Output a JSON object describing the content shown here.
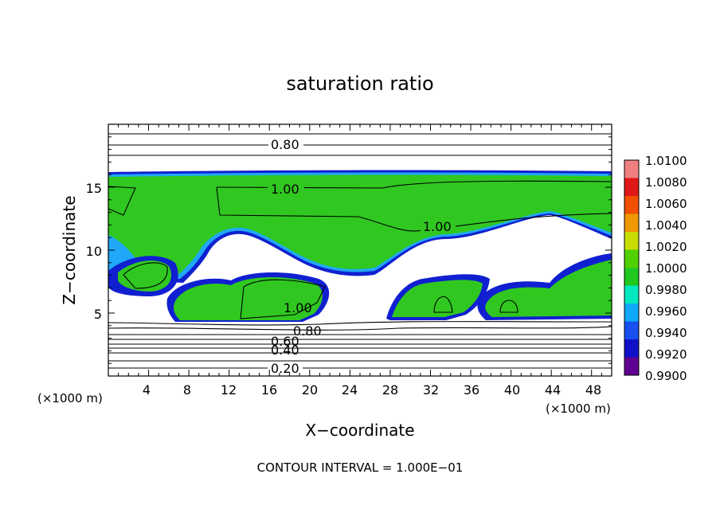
{
  "chart_data": {
    "type": "contour",
    "title": "saturation ratio",
    "xlabel": "X−coordinate",
    "ylabel": "Z−coordinate",
    "x_unit": "(×1000 m)",
    "z_unit": "(×1000 m)",
    "xlim": [
      0,
      50
    ],
    "ylim": [
      0,
      20
    ],
    "x_ticks": [
      "4",
      "8",
      "12",
      "16",
      "20",
      "24",
      "28",
      "32",
      "36",
      "40",
      "44",
      "48"
    ],
    "y_ticks": [
      "5",
      "10",
      "15"
    ],
    "contour_labels": [
      "0.80",
      "1.00",
      "1.00",
      "1.00",
      "0.80",
      "0.60",
      "0.40",
      "0.20"
    ],
    "contour_interval_text": "CONTOUR INTERVAL = 1.000E−01",
    "colorbar": {
      "labels": [
        "1.0100",
        "1.0080",
        "1.0060",
        "1.0040",
        "1.0020",
        "1.0000",
        "0.9980",
        "0.9960",
        "0.9940",
        "0.9920",
        "0.9900"
      ],
      "colors": [
        "#f08080",
        "#e01818",
        "#f05000",
        "#f09800",
        "#c8dc00",
        "#50d000",
        "#20c820",
        "#00e8c0",
        "#10a8f8",
        "#1850f0",
        "#1010c8",
        "#600090"
      ]
    }
  }
}
